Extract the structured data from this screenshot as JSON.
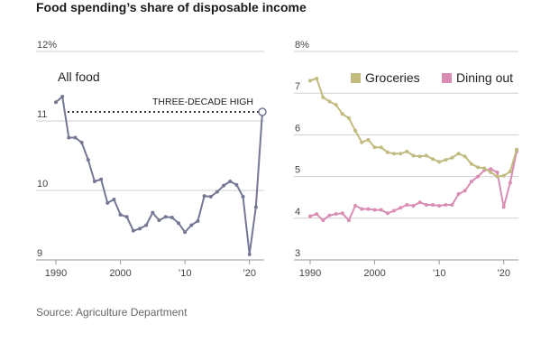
{
  "title": "Food spending’s share of disposable income",
  "source": "Source: Agriculture Department",
  "colors": {
    "all_food": "#757894",
    "groceries": "#c2bb80",
    "dining": "#d98db4",
    "dotted": "#333333"
  },
  "chart_data": [
    {
      "type": "line",
      "panel": "left",
      "series_label": "All food",
      "annotation": "THREE-DECADE HIGH",
      "x": [
        1990,
        1991,
        1992,
        1993,
        1994,
        1995,
        1996,
        1997,
        1998,
        1999,
        2000,
        2001,
        2002,
        2003,
        2004,
        2005,
        2006,
        2007,
        2008,
        2009,
        2010,
        2011,
        2012,
        2013,
        2014,
        2015,
        2016,
        2017,
        2018,
        2019,
        2020,
        2021,
        2022
      ],
      "series": [
        {
          "name": "All food",
          "values": [
            11.27,
            11.35,
            10.76,
            10.76,
            10.69,
            10.44,
            10.13,
            10.16,
            9.82,
            9.87,
            9.65,
            9.62,
            9.42,
            9.45,
            9.5,
            9.68,
            9.57,
            9.62,
            9.61,
            9.53,
            9.4,
            9.5,
            9.56,
            9.92,
            9.91,
            9.98,
            10.07,
            10.13,
            10.08,
            9.91,
            9.08,
            9.76,
            11.13
          ]
        }
      ],
      "ylim": [
        9,
        12
      ],
      "yticks": [
        "9",
        "10",
        "11",
        "12%"
      ],
      "xticks": [
        "1990",
        "2000",
        "’10",
        "’20"
      ]
    },
    {
      "type": "line",
      "panel": "right",
      "ylim": [
        3,
        8
      ],
      "yticks": [
        "3",
        "4",
        "5",
        "6",
        "7",
        "8%"
      ],
      "xticks": [
        "1990",
        "2000",
        "’10",
        "’20"
      ],
      "x": [
        1990,
        1991,
        1992,
        1993,
        1994,
        1995,
        1996,
        1997,
        1998,
        1999,
        2000,
        2001,
        2002,
        2003,
        2004,
        2005,
        2006,
        2007,
        2008,
        2009,
        2010,
        2011,
        2012,
        2013,
        2014,
        2015,
        2016,
        2017,
        2018,
        2019,
        2020,
        2021,
        2022
      ],
      "series": [
        {
          "name": "Groceries",
          "values": [
            7.3,
            7.35,
            6.9,
            6.8,
            6.72,
            6.5,
            6.4,
            6.1,
            5.82,
            5.88,
            5.7,
            5.7,
            5.58,
            5.55,
            5.55,
            5.6,
            5.5,
            5.48,
            5.5,
            5.42,
            5.35,
            5.4,
            5.45,
            5.55,
            5.48,
            5.3,
            5.22,
            5.2,
            5.1,
            5.0,
            5.02,
            5.12,
            5.65
          ]
        },
        {
          "name": "Dining out",
          "values": [
            4.05,
            4.1,
            3.95,
            4.07,
            4.1,
            4.12,
            3.95,
            4.3,
            4.22,
            4.22,
            4.2,
            4.2,
            4.12,
            4.18,
            4.25,
            4.32,
            4.3,
            4.38,
            4.32,
            4.32,
            4.3,
            4.32,
            4.32,
            4.58,
            4.66,
            4.88,
            5.0,
            5.15,
            5.18,
            5.1,
            4.27,
            4.85,
            5.6
          ]
        }
      ]
    }
  ]
}
